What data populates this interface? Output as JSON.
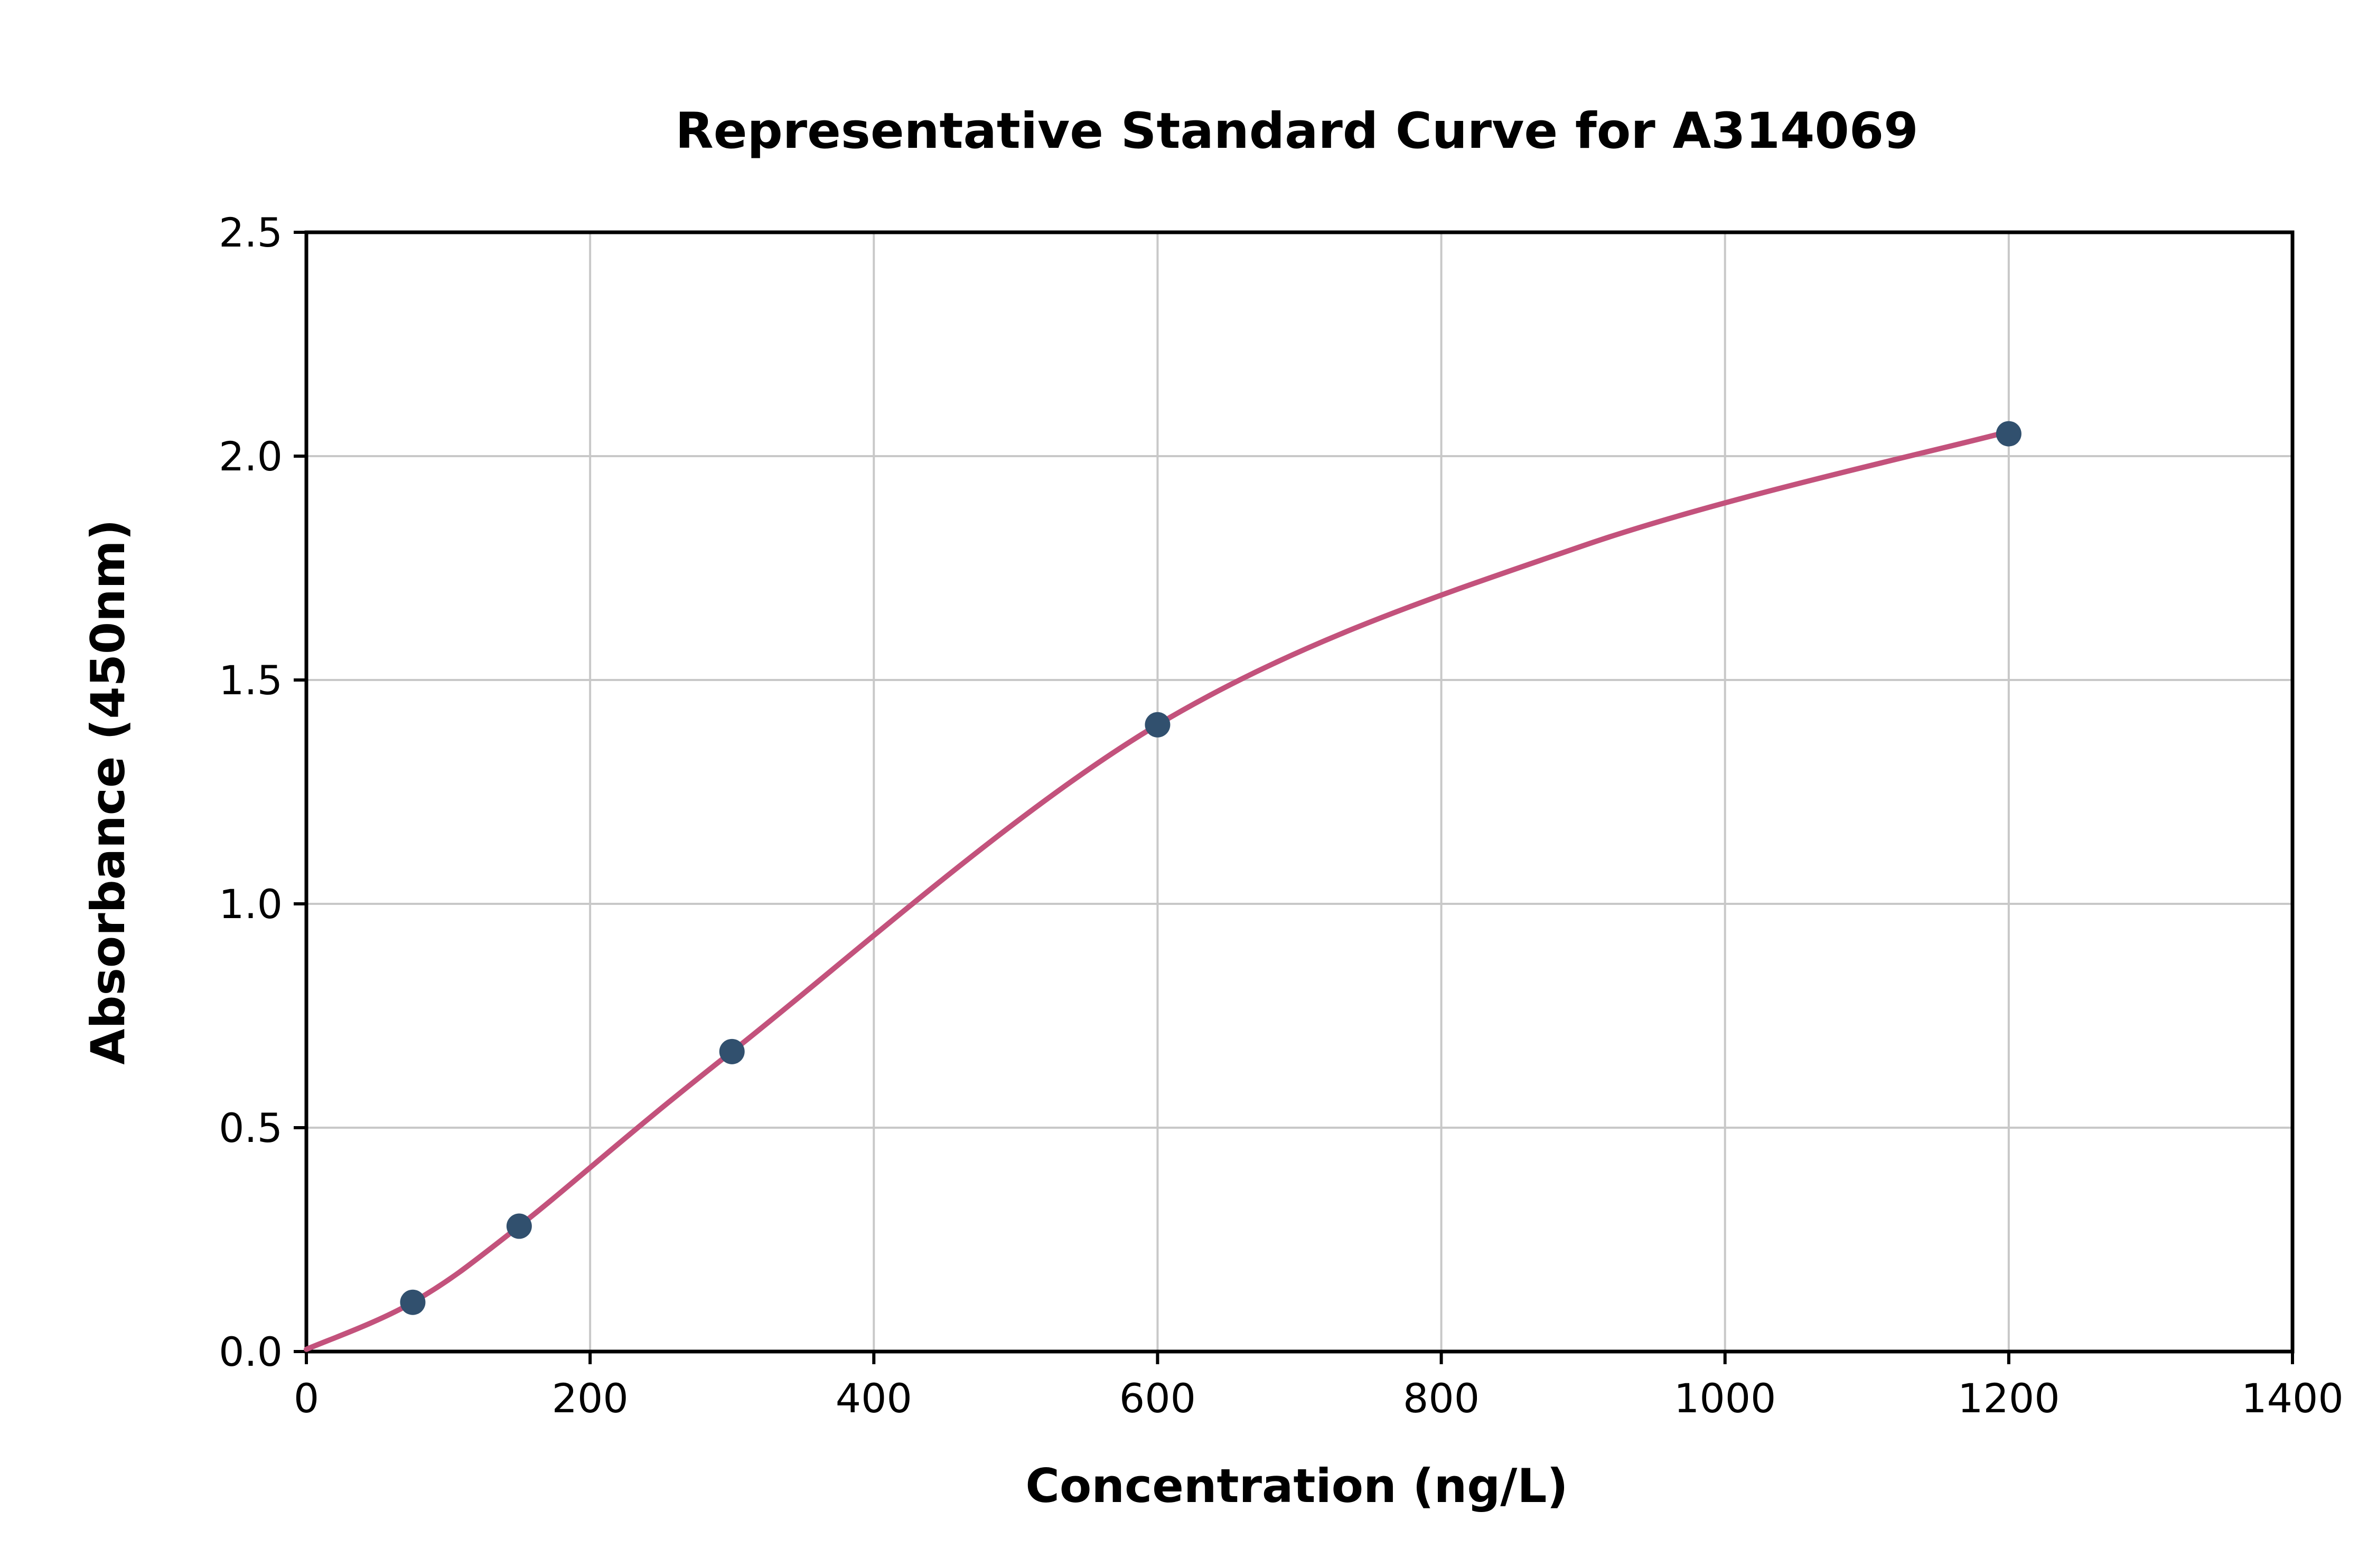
{
  "chart_data": {
    "type": "line",
    "title": "Representative Standard Curve for A314069",
    "xlabel": "Concentration (ng/L)",
    "ylabel": "Absorbance (450nm)",
    "xlim": [
      0,
      1400
    ],
    "ylim": [
      0,
      2.5
    ],
    "x_ticks": [
      0,
      200,
      400,
      600,
      800,
      1000,
      1200,
      1400
    ],
    "x_tick_labels": [
      "0",
      "200",
      "400",
      "600",
      "800",
      "1000",
      "1200",
      "1400"
    ],
    "y_ticks": [
      0.0,
      0.5,
      1.0,
      1.5,
      2.0,
      2.5
    ],
    "y_tick_labels": [
      "0.0",
      "0.5",
      "1.0",
      "1.5",
      "2.0",
      "2.5"
    ],
    "grid": true,
    "legend": "none",
    "points": {
      "x": [
        75,
        150,
        300,
        600,
        1200
      ],
      "y": [
        0.11,
        0.28,
        0.67,
        1.4,
        2.05
      ]
    },
    "curve": {
      "x": [
        0,
        75,
        150,
        300,
        600,
        900,
        1200
      ],
      "y": [
        0.005,
        0.11,
        0.28,
        0.67,
        1.4,
        1.8,
        2.055
      ]
    },
    "colors": {
      "curve": "#c3527c",
      "points": "#31506e",
      "grid": "#c8c8c8",
      "axis": "#000000",
      "background": "#ffffff"
    }
  }
}
